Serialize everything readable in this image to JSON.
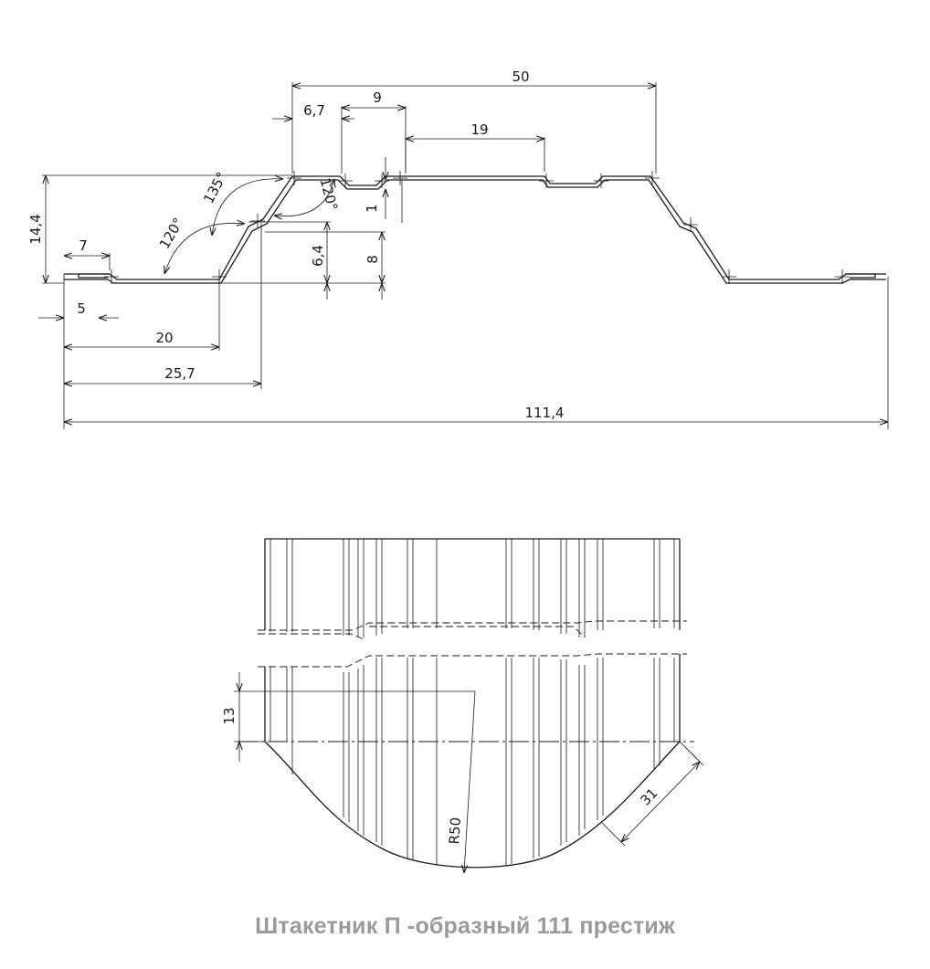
{
  "caption": "Штакетник П -образный 111 престиж",
  "profile_dimensions": {
    "total_width": "111,4",
    "top_width": "50",
    "dim_25_7": "25,7",
    "dim_20": "20",
    "dim_7": "7",
    "dim_5": "5",
    "dim_6_7": "6,7",
    "dim_9": "9",
    "dim_19": "19",
    "height_14_4": "14,4",
    "height_6_4": "6,4",
    "height_8": "8",
    "step_1": "1",
    "angle_135": "135°",
    "angle_120_left": "120°",
    "angle_120_right": "120°"
  },
  "top_dimensions": {
    "dim_13": "13",
    "dim_31": "31",
    "radius": "R50"
  }
}
